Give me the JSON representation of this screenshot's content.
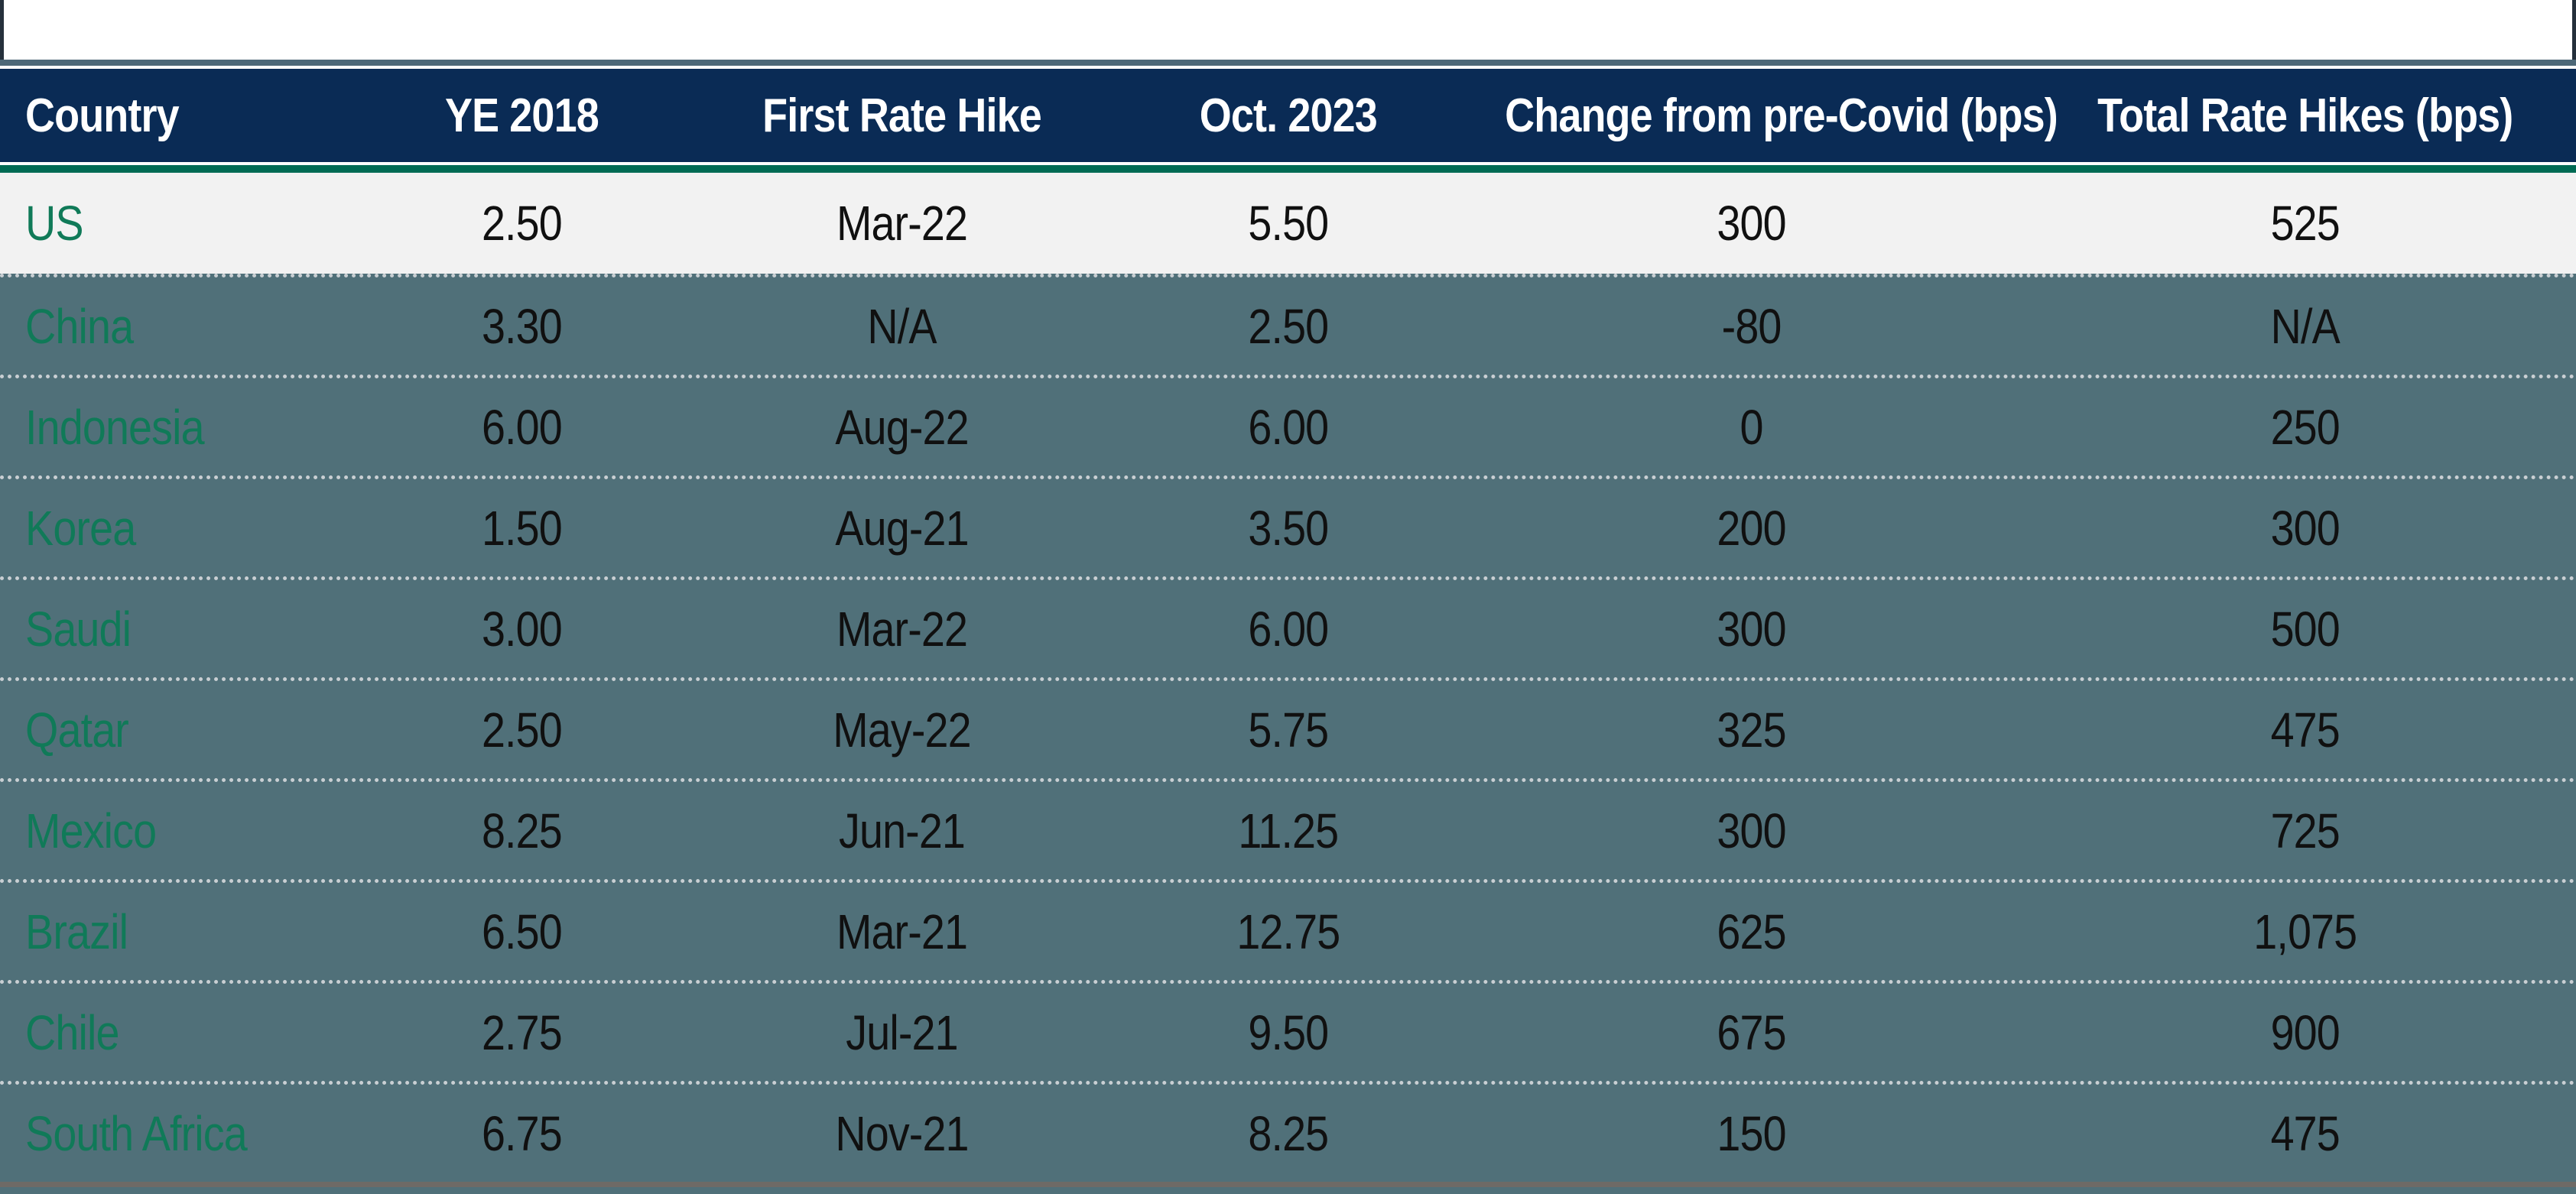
{
  "chart_data": {
    "type": "table",
    "columns": [
      "Country",
      "YE 2018",
      "First Rate Hike",
      "Oct. 2023",
      "Change from pre-Covid (bps)",
      "Total Rate Hikes (bps)"
    ],
    "rows": [
      {
        "cells": [
          "US",
          "2.50",
          "Mar-22",
          "5.50",
          "300",
          "525"
        ],
        "highlight": true
      },
      {
        "cells": [
          "China",
          "3.30",
          "N/A",
          "2.50",
          "-80",
          "N/A"
        ],
        "highlight": false
      },
      {
        "cells": [
          "Indonesia",
          "6.00",
          "Aug-22",
          "6.00",
          "0",
          "250"
        ],
        "highlight": false
      },
      {
        "cells": [
          "Korea",
          "1.50",
          "Aug-21",
          "3.50",
          "200",
          "300"
        ],
        "highlight": false
      },
      {
        "cells": [
          "Saudi",
          "3.00",
          "Mar-22",
          "6.00",
          "300",
          "500"
        ],
        "highlight": false
      },
      {
        "cells": [
          "Qatar",
          "2.50",
          "May-22",
          "5.75",
          "325",
          "475"
        ],
        "highlight": false
      },
      {
        "cells": [
          "Mexico",
          "8.25",
          "Jun-21",
          "11.25",
          "300",
          "725"
        ],
        "highlight": false
      },
      {
        "cells": [
          "Brazil",
          "6.50",
          "Mar-21",
          "12.75",
          "625",
          "1,075"
        ],
        "highlight": false
      },
      {
        "cells": [
          "Chile",
          "2.75",
          "Jul-21",
          "9.50",
          "675",
          "900"
        ],
        "highlight": false
      },
      {
        "cells": [
          "South Africa",
          "6.75",
          "Nov-21",
          "8.25",
          "150",
          "475"
        ],
        "highlight": false
      }
    ],
    "layout": {
      "first_column_align": "left",
      "other_columns_align": "center",
      "row_separator": "dotted",
      "highlight_row": "US"
    },
    "colors": {
      "header_bg": "#0a2b55",
      "header_text": "#ffffff",
      "green_accent_bar": "#006b54",
      "row_bg": "#507079",
      "highlight_row_bg": "#f2f2f2",
      "country_text": "#107a58",
      "value_text": "#101010",
      "top_divider": "#4d6878",
      "bottom_border": "#6e6a66"
    }
  }
}
